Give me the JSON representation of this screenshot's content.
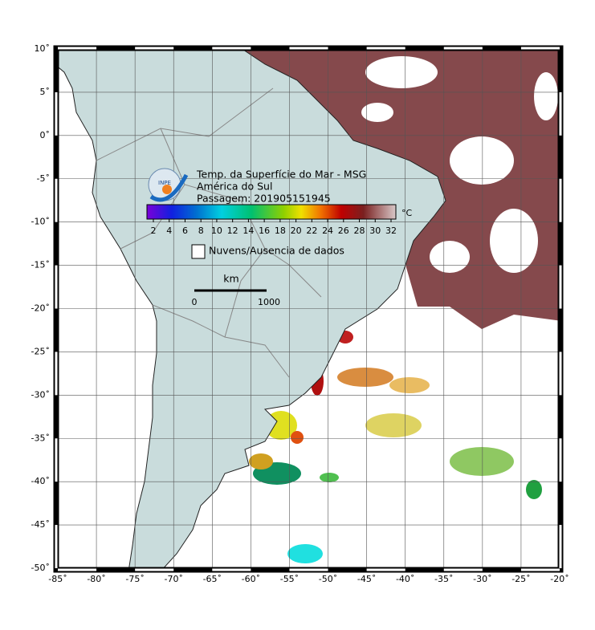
{
  "title": "Temp. da Superfície do Mar - MSG",
  "subtitle": "América do Sul",
  "pass": "Passagem: 201905151945",
  "logo": "INPE",
  "colorbar": {
    "ticks": [
      2,
      4,
      6,
      8,
      10,
      12,
      14,
      16,
      18,
      20,
      22,
      24,
      26,
      28,
      30,
      32
    ],
    "unit": "°C"
  },
  "legend": "Nuvens/Ausencia de dados",
  "scale": {
    "unit": "km",
    "labels": [
      "0",
      "1000"
    ]
  },
  "lat_labels": [
    "10˚",
    "5˚",
    "0˚",
    "-5˚",
    "-10˚",
    "-15˚",
    "-20˚",
    "-25˚",
    "-30˚",
    "-35˚",
    "-40˚",
    "-45˚",
    "-50˚"
  ],
  "lon_labels": [
    "-85˚",
    "-80˚",
    "-75˚",
    "-70˚",
    "-65˚",
    "-60˚",
    "-55˚",
    "-50˚",
    "-45˚",
    "-40˚",
    "-35˚",
    "-30˚",
    "-25˚",
    "-20˚"
  ]
}
